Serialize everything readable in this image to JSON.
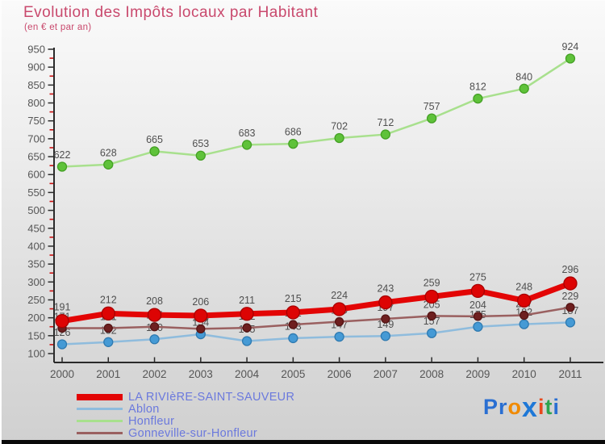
{
  "title": "Evolution des Impôts locaux par Habitant",
  "subtitle": "(en € et par an)",
  "colors": {
    "title": "#c9496d",
    "legend_text": "#6b79dd",
    "axis": "#2b2b2b",
    "minor_tick": "#cc1111",
    "tick_label": "#565656",
    "data_label": "#4f4f4f",
    "background_top": "#fafafa",
    "background_bottom": "#d0d0d0"
  },
  "chart_data": {
    "type": "line",
    "x": [
      2000,
      2001,
      2002,
      2003,
      2004,
      2005,
      2006,
      2007,
      2008,
      2009,
      2010,
      2011
    ],
    "series": [
      {
        "name": "LA RIVIèRE-SAINT-SAUVEUR",
        "values": [
          191,
          212,
          208,
          206,
          211,
          215,
          224,
          243,
          259,
          275,
          248,
          296
        ],
        "line_color": "#e30505",
        "marker_color": "#dd0404",
        "marker_stroke": "#a80000",
        "line_width": 7,
        "marker_radius": 8,
        "swatch_height": 8
      },
      {
        "name": "Ablon",
        "values": [
          126,
          132,
          140,
          154,
          135,
          143,
          147,
          149,
          157,
          175,
          182,
          187
        ],
        "line_color": "#8fbcdd",
        "marker_color": "#459ad5",
        "marker_stroke": "#2f7ab0",
        "line_width": 2.5,
        "marker_radius": 5.5,
        "swatch_height": 3
      },
      {
        "name": "Honfleur",
        "values": [
          622,
          628,
          665,
          653,
          683,
          686,
          702,
          712,
          757,
          812,
          840,
          924
        ],
        "line_color": "#a8e08d",
        "marker_color": "#5fc23a",
        "marker_stroke": "#44a024",
        "line_width": 2.5,
        "marker_radius": 5.5,
        "swatch_height": 3
      },
      {
        "name": "Gonneville-sur-Honfleur",
        "values": [
          171,
          171,
          175,
          169,
          172,
          181,
          189,
          197,
          205,
          204,
          207,
          229
        ],
        "line_color": "#9a6060",
        "marker_color": "#6e1f1f",
        "marker_stroke": "#541313",
        "line_width": 2.5,
        "marker_radius": 5,
        "swatch_height": 3
      }
    ],
    "draw_order": [
      1,
      2,
      3,
      0
    ],
    "ylim": [
      100,
      950
    ],
    "ytick_step": 50,
    "y_minor_tick_step": 25,
    "grid": false,
    "legend_position": "bottom-left",
    "legend_order": [
      0,
      1,
      2,
      3
    ]
  },
  "logo": {
    "text": "Proxiti",
    "letters": [
      {
        "ch": "P",
        "color": "#2a6fd2",
        "big": false
      },
      {
        "ch": "r",
        "color": "#2a6fd2",
        "big": false
      },
      {
        "ch": "o",
        "color": "#f08a00",
        "big": false
      },
      {
        "ch": "x",
        "color": "#1e78d7",
        "big": true
      },
      {
        "ch": "i",
        "color": "#e8491d",
        "big": false
      },
      {
        "ch": "t",
        "color": "#2ea44f",
        "big": false
      },
      {
        "ch": "i",
        "color": "#2a6fd2",
        "big": false
      }
    ]
  }
}
